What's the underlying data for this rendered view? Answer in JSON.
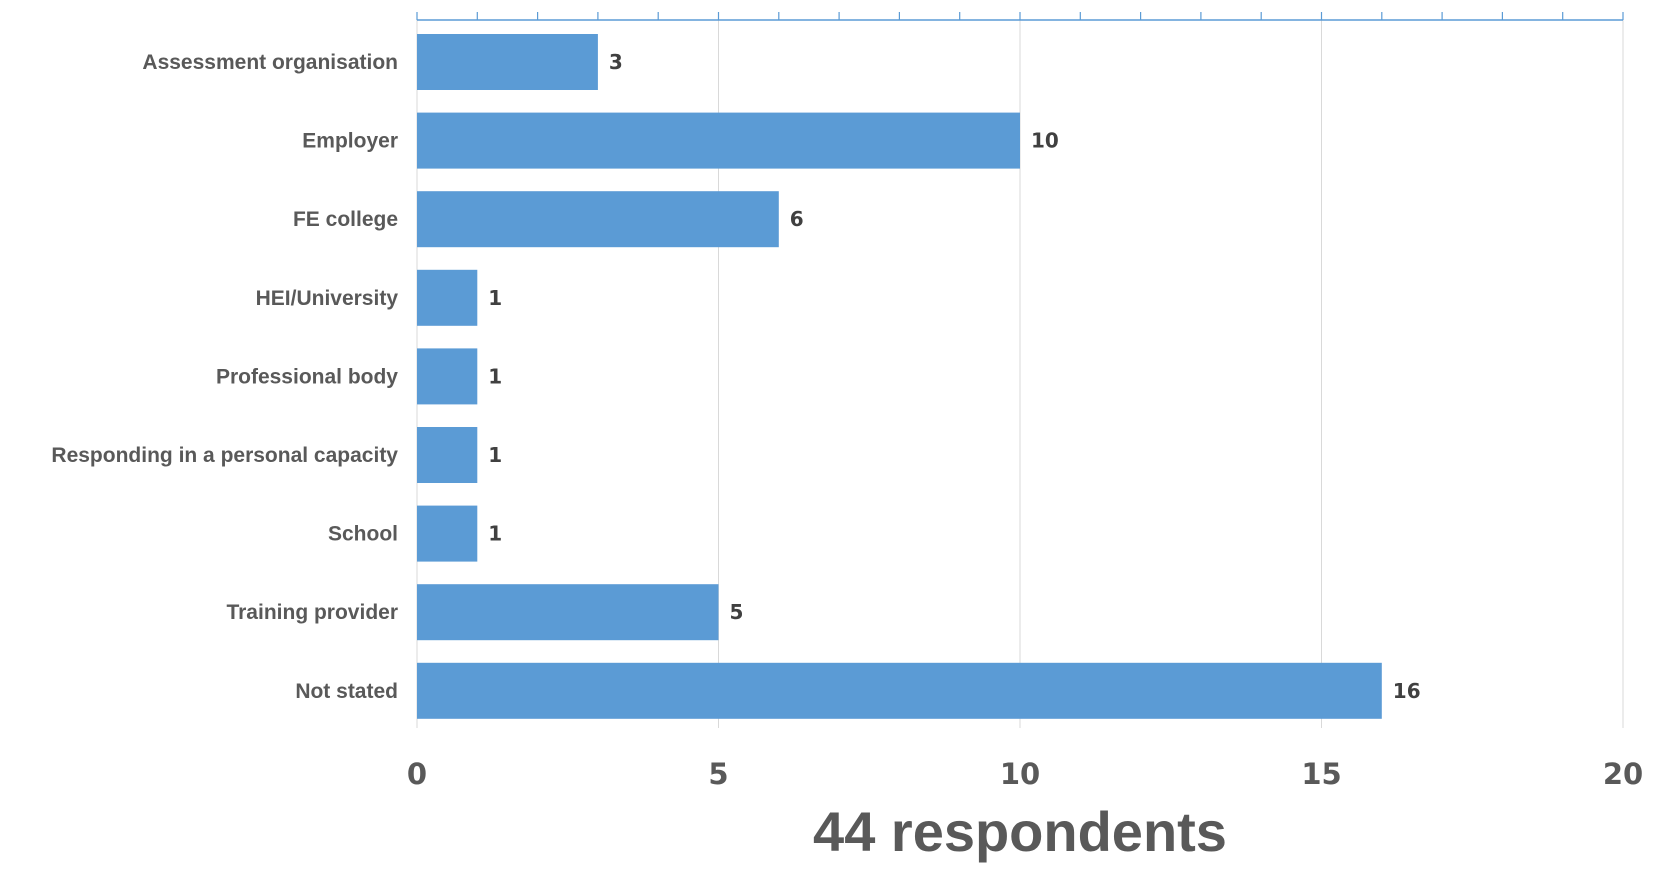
{
  "chart_data": {
    "type": "bar",
    "orientation": "horizontal",
    "categories": [
      "Assessment organisation",
      "Employer",
      "FE college",
      "HEI/University",
      "Professional body",
      "Responding in a personal capacity",
      "School",
      "Training provider",
      "Not stated"
    ],
    "values": [
      3,
      10,
      6,
      1,
      1,
      1,
      1,
      5,
      16
    ],
    "xlim": [
      0,
      20
    ],
    "xticks": [
      0,
      5,
      10,
      15,
      20
    ],
    "minor_tick_step": 1,
    "xlabel": "44 respondents",
    "ylabel": "",
    "title": "",
    "data_labels": true,
    "grid": "vertical major gridlines",
    "legend": "none",
    "colors": {
      "bar": "#5b9bd5",
      "grid": "#d9d9d9",
      "axis": "#5b9bd5",
      "text": "#595959"
    }
  }
}
